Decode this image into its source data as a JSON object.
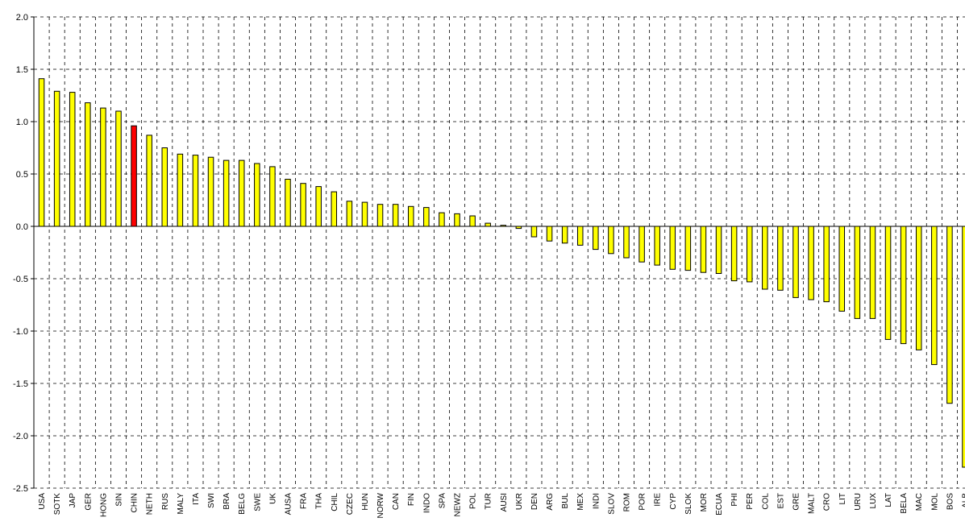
{
  "chart_data": {
    "type": "bar",
    "categories": [
      "USA",
      "SOTK",
      "JAP",
      "GER",
      "HONG",
      "SIN",
      "CHIN",
      "NETH",
      "RUS",
      "MALY",
      "ITA",
      "SWI",
      "BRA",
      "BELG",
      "SWE",
      "UK",
      "AUSA",
      "FRA",
      "THA",
      "CHIL",
      "CZEC",
      "HUN",
      "NORW",
      "CAN",
      "FIN",
      "INDO",
      "SPA",
      "NEWZ",
      "POL",
      "TUR",
      "AUSI",
      "UKR",
      "DEN",
      "ARG",
      "BUL",
      "MEX",
      "INDI",
      "SLOV",
      "ROM",
      "POR",
      "IRE",
      "CYP",
      "SLOK",
      "MOR",
      "ECUA",
      "PHI",
      "PER",
      "COL",
      "EST",
      "GRE",
      "MALT",
      "CRO",
      "LIT",
      "URU",
      "LUX",
      "LAT",
      "BELA",
      "MAC",
      "MOL",
      "BOS",
      "ALB"
    ],
    "values": [
      1.41,
      1.29,
      1.28,
      1.18,
      1.13,
      1.1,
      0.96,
      0.87,
      0.75,
      0.69,
      0.68,
      0.66,
      0.63,
      0.63,
      0.6,
      0.57,
      0.45,
      0.41,
      0.38,
      0.33,
      0.24,
      0.23,
      0.21,
      0.21,
      0.19,
      0.18,
      0.13,
      0.12,
      0.1,
      0.03,
      0.01,
      -0.02,
      -0.1,
      -0.14,
      -0.16,
      -0.18,
      -0.22,
      -0.26,
      -0.3,
      -0.34,
      -0.37,
      -0.41,
      -0.42,
      -0.44,
      -0.45,
      -0.52,
      -0.53,
      -0.6,
      -0.61,
      -0.68,
      -0.7,
      -0.72,
      -0.81,
      -0.88,
      -0.88,
      -1.08,
      -1.12,
      -1.18,
      -1.32,
      -1.69,
      -2.3
    ],
    "highlight_category": "CHIN",
    "yticks": [
      "2.0",
      "1.5",
      "1.0",
      "0.5",
      "0.0",
      "-0.5",
      "-1.0",
      "-1.5",
      "-2.0",
      "-2.5"
    ],
    "ylim": [
      -2.5,
      2.0
    ],
    "grid": "dashed-both",
    "legend": "none",
    "colors": {
      "bar": "#ffff00",
      "highlight": "#ff0000",
      "outline": "#000000",
      "grid": "#000000"
    }
  }
}
